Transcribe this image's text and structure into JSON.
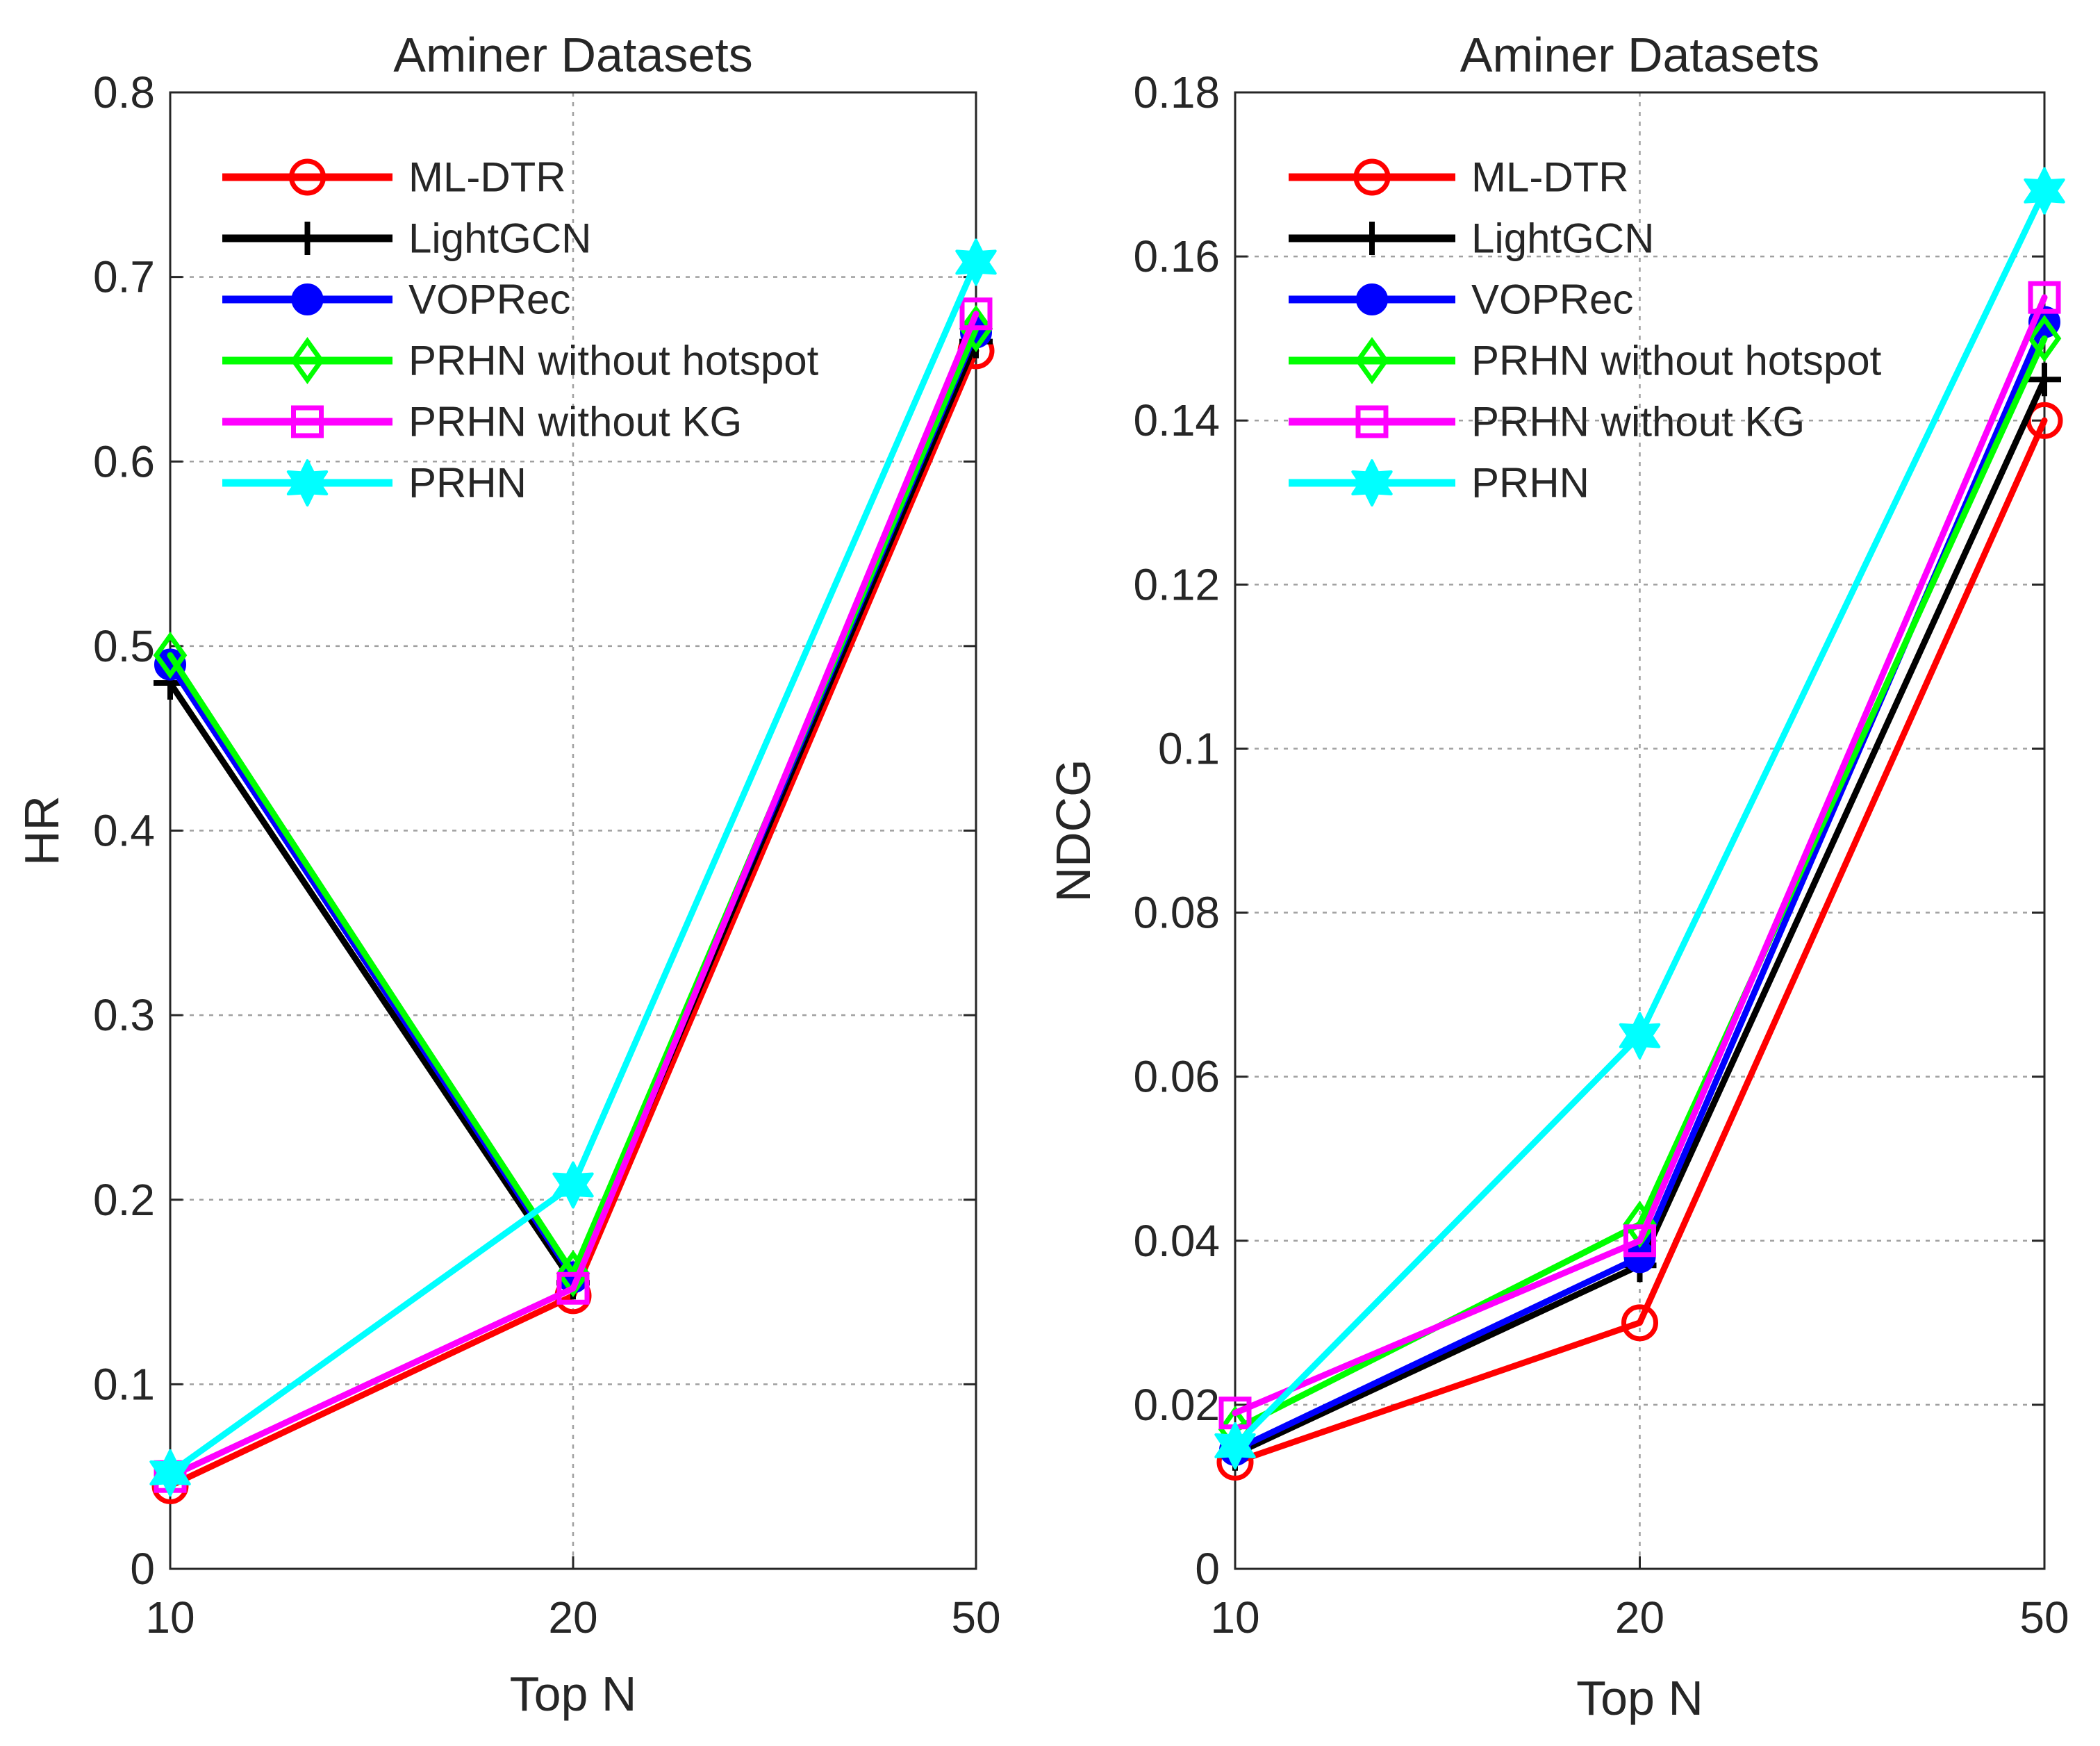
{
  "chart_data": [
    {
      "type": "line",
      "title": "Aminer Datasets",
      "xlabel": "Top N",
      "ylabel": "HR",
      "categories": [
        "10",
        "20",
        "50"
      ],
      "ylim": [
        0,
        0.8
      ],
      "yticks": [
        "0",
        "0.1",
        "0.2",
        "0.3",
        "0.4",
        "0.5",
        "0.6",
        "0.7",
        "0.8"
      ],
      "grid": true,
      "legend_position": "top-left",
      "series": [
        {
          "name": "ML-DTR",
          "color": "#ff0000",
          "marker": "circle",
          "values": [
            0.045,
            0.148,
            0.66
          ]
        },
        {
          "name": "LightGCN",
          "color": "#000000",
          "marker": "plus",
          "values": [
            0.48,
            0.155,
            0.665
          ]
        },
        {
          "name": "VOPRec",
          "color": "#0000ff",
          "marker": "filled-circle",
          "values": [
            0.49,
            0.158,
            0.67
          ]
        },
        {
          "name": "PRHN without hotspot",
          "color": "#00ff00",
          "marker": "diamond",
          "values": [
            0.495,
            0.16,
            0.672
          ]
        },
        {
          "name": "PRHN without KG",
          "color": "#ff00ff",
          "marker": "square",
          "values": [
            0.05,
            0.152,
            0.68
          ]
        },
        {
          "name": "PRHN",
          "color": "#00ffff",
          "marker": "hexagram",
          "values": [
            0.052,
            0.208,
            0.708
          ]
        }
      ]
    },
    {
      "type": "line",
      "title": "Aminer Datasets",
      "xlabel": "Top N",
      "ylabel": "NDCG",
      "categories": [
        "10",
        "20",
        "50"
      ],
      "ylim": [
        0,
        0.18
      ],
      "yticks": [
        "0",
        "0.02",
        "0.04",
        "0.06",
        "0.08",
        "0.1",
        "0.12",
        "0.14",
        "0.16",
        "0.18"
      ],
      "grid": true,
      "legend_position": "top-left",
      "series": [
        {
          "name": "ML-DTR",
          "color": "#ff0000",
          "marker": "circle",
          "values": [
            0.013,
            0.03,
            0.14
          ]
        },
        {
          "name": "LightGCN",
          "color": "#000000",
          "marker": "plus",
          "values": [
            0.014,
            0.037,
            0.145
          ]
        },
        {
          "name": "VOPRec",
          "color": "#0000ff",
          "marker": "filled-circle",
          "values": [
            0.0145,
            0.038,
            0.152
          ]
        },
        {
          "name": "PRHN without hotspot",
          "color": "#00ff00",
          "marker": "diamond",
          "values": [
            0.017,
            0.042,
            0.15
          ]
        },
        {
          "name": "PRHN without KG",
          "color": "#ff00ff",
          "marker": "square",
          "values": [
            0.019,
            0.04,
            0.155
          ]
        },
        {
          "name": "PRHN",
          "color": "#00ffff",
          "marker": "hexagram",
          "values": [
            0.015,
            0.065,
            0.168
          ]
        }
      ]
    }
  ]
}
